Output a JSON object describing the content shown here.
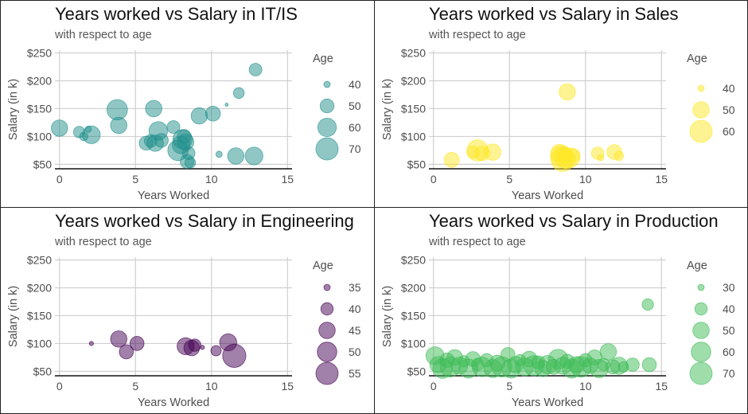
{
  "chart_data": [
    {
      "type": "scatter",
      "title": "Years worked vs Salary in IT/IS",
      "subtitle": "with respect to age",
      "xlabel": "Years Worked",
      "ylabel": "Salary (in k)",
      "xlim": [
        -0.3,
        15.3
      ],
      "ylim": [
        42,
        255
      ],
      "xticks": [
        0,
        5,
        10,
        15
      ],
      "yticks": [
        50,
        100,
        150,
        200,
        250
      ],
      "ytick_labels": [
        "$50",
        "$100",
        "$150",
        "$200",
        "$250"
      ],
      "grid": true,
      "legend_title": "Age",
      "legend_position": "right",
      "color": "#21908C",
      "legend_sizes": [
        40,
        50,
        60,
        70
      ],
      "size_range": [
        28,
        75
      ],
      "points": [
        {
          "x": 0.0,
          "y": 115,
          "age": 55
        },
        {
          "x": 0.8,
          "y": 88,
          "age": 34
        },
        {
          "x": 1.1,
          "y": 75,
          "age": 32
        },
        {
          "x": 1.3,
          "y": 108,
          "age": 46
        },
        {
          "x": 1.6,
          "y": 100,
          "age": 42
        },
        {
          "x": 1.9,
          "y": 113,
          "age": 40
        },
        {
          "x": 2.1,
          "y": 103,
          "age": 58
        },
        {
          "x": 3.8,
          "y": 148,
          "age": 65
        },
        {
          "x": 3.9,
          "y": 120,
          "age": 55
        },
        {
          "x": 5.7,
          "y": 88,
          "age": 50
        },
        {
          "x": 6.0,
          "y": 92,
          "age": 48
        },
        {
          "x": 6.2,
          "y": 150,
          "age": 55
        },
        {
          "x": 6.3,
          "y": 88,
          "age": 55
        },
        {
          "x": 6.5,
          "y": 110,
          "age": 60
        },
        {
          "x": 6.7,
          "y": 93,
          "age": 50
        },
        {
          "x": 7.5,
          "y": 117,
          "age": 48
        },
        {
          "x": 7.8,
          "y": 75,
          "age": 65
        },
        {
          "x": 8.0,
          "y": 85,
          "age": 58
        },
        {
          "x": 8.1,
          "y": 95,
          "age": 62
        },
        {
          "x": 8.2,
          "y": 100,
          "age": 50
        },
        {
          "x": 8.3,
          "y": 90,
          "age": 55
        },
        {
          "x": 8.4,
          "y": 55,
          "age": 50
        },
        {
          "x": 8.5,
          "y": 70,
          "age": 48
        },
        {
          "x": 8.6,
          "y": 53,
          "age": 45
        },
        {
          "x": 9.2,
          "y": 137,
          "age": 55
        },
        {
          "x": 10.1,
          "y": 141,
          "age": 52
        },
        {
          "x": 10.5,
          "y": 68,
          "age": 40
        },
        {
          "x": 11.0,
          "y": 157,
          "age": 38
        },
        {
          "x": 11.6,
          "y": 65,
          "age": 55
        },
        {
          "x": 11.8,
          "y": 178,
          "age": 45
        },
        {
          "x": 12.0,
          "y": 52,
          "age": 32
        },
        {
          "x": 12.8,
          "y": 65,
          "age": 58
        },
        {
          "x": 12.9,
          "y": 220,
          "age": 48
        }
      ]
    },
    {
      "type": "scatter",
      "title": "Years worked vs Salary in Sales",
      "subtitle": "with respect to age",
      "xlabel": "Years Worked",
      "ylabel": "Salary (in k)",
      "xlim": [
        -0.3,
        15.3
      ],
      "ylim": [
        42,
        255
      ],
      "xticks": [
        0,
        5,
        10,
        15
      ],
      "yticks": [
        50,
        100,
        150,
        200,
        250
      ],
      "ytick_labels": [
        "$50",
        "$100",
        "$150",
        "$200",
        "$250"
      ],
      "grid": true,
      "legend_title": "Age",
      "legend_position": "right",
      "color": "#FDE725",
      "legend_sizes": [
        40,
        50,
        60
      ],
      "size_range": [
        28,
        65
      ],
      "points": [
        {
          "x": 1.2,
          "y": 58,
          "age": 48
        },
        {
          "x": 2.6,
          "y": 72,
          "age": 45
        },
        {
          "x": 2.9,
          "y": 75,
          "age": 58
        },
        {
          "x": 3.2,
          "y": 70,
          "age": 48
        },
        {
          "x": 3.9,
          "y": 72,
          "age": 50
        },
        {
          "x": 8.3,
          "y": 70,
          "age": 52
        },
        {
          "x": 8.4,
          "y": 65,
          "age": 58
        },
        {
          "x": 8.5,
          "y": 58,
          "age": 62
        },
        {
          "x": 8.6,
          "y": 68,
          "age": 48
        },
        {
          "x": 8.7,
          "y": 60,
          "age": 55
        },
        {
          "x": 8.8,
          "y": 180,
          "age": 50
        },
        {
          "x": 9.0,
          "y": 62,
          "age": 55
        },
        {
          "x": 9.2,
          "y": 66,
          "age": 46
        },
        {
          "x": 9.6,
          "y": 65,
          "age": 38
        },
        {
          "x": 10.8,
          "y": 70,
          "age": 45
        },
        {
          "x": 11.0,
          "y": 62,
          "age": 40
        },
        {
          "x": 11.2,
          "y": 65,
          "age": 35
        },
        {
          "x": 11.9,
          "y": 72,
          "age": 48
        },
        {
          "x": 12.2,
          "y": 65,
          "age": 42
        },
        {
          "x": 12.5,
          "y": 62,
          "age": 30
        }
      ]
    },
    {
      "type": "scatter",
      "title": "Years worked vs Salary in Engineering",
      "subtitle": "with respect to age",
      "xlabel": "Years Worked",
      "ylabel": "Salary (in k)",
      "xlim": [
        -0.3,
        15.3
      ],
      "ylim": [
        42,
        255
      ],
      "xticks": [
        0,
        5,
        10,
        15
      ],
      "yticks": [
        50,
        100,
        150,
        200,
        250
      ],
      "ytick_labels": [
        "$50",
        "$100",
        "$150",
        "$200",
        "$250"
      ],
      "grid": true,
      "legend_title": "Age",
      "legend_position": "right",
      "color": "#440154",
      "legend_sizes": [
        35,
        40,
        45,
        50,
        55
      ],
      "size_range": [
        33,
        57
      ],
      "points": [
        {
          "x": 2.1,
          "y": 100,
          "age": 34
        },
        {
          "x": 3.9,
          "y": 108,
          "age": 45
        },
        {
          "x": 4.4,
          "y": 85,
          "age": 42
        },
        {
          "x": 5.1,
          "y": 100,
          "age": 42
        },
        {
          "x": 8.3,
          "y": 95,
          "age": 46
        },
        {
          "x": 8.7,
          "y": 92,
          "age": 44
        },
        {
          "x": 8.9,
          "y": 97,
          "age": 40
        },
        {
          "x": 9.3,
          "y": 107,
          "age": 33
        },
        {
          "x": 9.4,
          "y": 93,
          "age": 34
        },
        {
          "x": 10.3,
          "y": 87,
          "age": 38
        },
        {
          "x": 11.1,
          "y": 102,
          "age": 46
        },
        {
          "x": 11.5,
          "y": 78,
          "age": 57
        }
      ]
    },
    {
      "type": "scatter",
      "title": "Years worked vs Salary in Production",
      "subtitle": "with respect to age",
      "xlabel": "Years Worked",
      "ylabel": "Salary (in k)",
      "xlim": [
        -0.3,
        15.3
      ],
      "ylim": [
        42,
        255
      ],
      "xticks": [
        0,
        5,
        10,
        15
      ],
      "yticks": [
        50,
        100,
        150,
        200,
        250
      ],
      "ytick_labels": [
        "$50",
        "$100",
        "$150",
        "$200",
        "$250"
      ],
      "grid": true,
      "legend_title": "Age",
      "legend_position": "right",
      "color": "#3FBC58",
      "legend_sizes": [
        30,
        40,
        50,
        60,
        70
      ],
      "size_range": [
        28,
        72
      ],
      "points": [
        {
          "x": 0.1,
          "y": 78,
          "age": 55
        },
        {
          "x": 0.3,
          "y": 62,
          "age": 50
        },
        {
          "x": 0.6,
          "y": 55,
          "age": 60
        },
        {
          "x": 0.9,
          "y": 70,
          "age": 45
        },
        {
          "x": 1.1,
          "y": 58,
          "age": 62
        },
        {
          "x": 1.4,
          "y": 75,
          "age": 48
        },
        {
          "x": 1.7,
          "y": 60,
          "age": 52
        },
        {
          "x": 2.0,
          "y": 68,
          "age": 38
        },
        {
          "x": 2.3,
          "y": 55,
          "age": 58
        },
        {
          "x": 2.6,
          "y": 72,
          "age": 46
        },
        {
          "x": 2.9,
          "y": 62,
          "age": 40
        },
        {
          "x": 3.2,
          "y": 58,
          "age": 60
        },
        {
          "x": 3.5,
          "y": 70,
          "age": 42
        },
        {
          "x": 3.9,
          "y": 55,
          "age": 55
        },
        {
          "x": 4.2,
          "y": 65,
          "age": 48
        },
        {
          "x": 4.5,
          "y": 58,
          "age": 62
        },
        {
          "x": 4.9,
          "y": 80,
          "age": 44
        },
        {
          "x": 5.1,
          "y": 55,
          "age": 58
        },
        {
          "x": 5.4,
          "y": 62,
          "age": 50
        },
        {
          "x": 5.7,
          "y": 70,
          "age": 38
        },
        {
          "x": 6.0,
          "y": 58,
          "age": 55
        },
        {
          "x": 6.3,
          "y": 72,
          "age": 48
        },
        {
          "x": 6.6,
          "y": 60,
          "age": 62
        },
        {
          "x": 6.9,
          "y": 66,
          "age": 42
        },
        {
          "x": 7.2,
          "y": 55,
          "age": 50
        },
        {
          "x": 7.5,
          "y": 62,
          "age": 56
        },
        {
          "x": 7.9,
          "y": 58,
          "age": 46
        },
        {
          "x": 8.2,
          "y": 72,
          "age": 60
        },
        {
          "x": 8.5,
          "y": 60,
          "age": 52
        },
        {
          "x": 8.8,
          "y": 68,
          "age": 44
        },
        {
          "x": 9.1,
          "y": 55,
          "age": 58
        },
        {
          "x": 9.4,
          "y": 62,
          "age": 50
        },
        {
          "x": 9.7,
          "y": 58,
          "age": 64
        },
        {
          "x": 10.0,
          "y": 70,
          "age": 42
        },
        {
          "x": 10.3,
          "y": 60,
          "age": 48
        },
        {
          "x": 10.6,
          "y": 75,
          "age": 46
        },
        {
          "x": 10.9,
          "y": 55,
          "age": 56
        },
        {
          "x": 11.2,
          "y": 62,
          "age": 40
        },
        {
          "x": 11.5,
          "y": 85,
          "age": 50
        },
        {
          "x": 11.8,
          "y": 58,
          "age": 44
        },
        {
          "x": 12.2,
          "y": 60,
          "age": 52
        },
        {
          "x": 12.5,
          "y": 58,
          "age": 36
        },
        {
          "x": 13.1,
          "y": 62,
          "age": 42
        },
        {
          "x": 14.1,
          "y": 170,
          "age": 38
        },
        {
          "x": 14.2,
          "y": 62,
          "age": 44
        }
      ]
    }
  ]
}
